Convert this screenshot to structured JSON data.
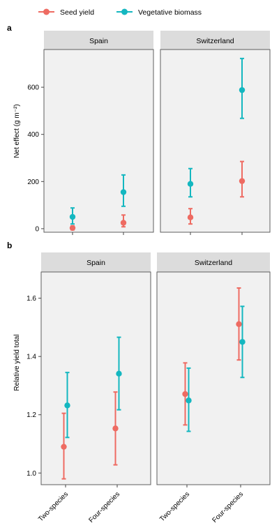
{
  "legend": {
    "items": [
      {
        "label": "Seed yield",
        "color": "#ee6b62"
      },
      {
        "label": "Vegetative biomass",
        "color": "#14b7c0"
      }
    ]
  },
  "x_tick_labels": [
    "Two-species",
    "Four-species"
  ],
  "chart_data": [
    {
      "type": "scatter",
      "panel_label": "a",
      "ylabel": "Net effect (g m⁻²)",
      "ylim": [
        -15,
        760
      ],
      "yticks": [
        0,
        200,
        400,
        600
      ],
      "x": [
        "Two-species",
        "Four-species"
      ],
      "facets": [
        "Spain",
        "Switzerland"
      ],
      "series": [
        {
          "name": "Seed yield",
          "color": "#ee6b62",
          "values": {
            "Spain": [
              {
                "y": 3,
                "lo": -5,
                "hi": 12
              },
              {
                "y": 25,
                "lo": 8,
                "hi": 58
              }
            ],
            "Switzerland": [
              {
                "y": 48,
                "lo": 20,
                "hi": 85
              },
              {
                "y": 202,
                "lo": 135,
                "hi": 285
              }
            ]
          }
        },
        {
          "name": "Vegetative biomass",
          "color": "#14b7c0",
          "values": {
            "Spain": [
              {
                "y": 50,
                "lo": 20,
                "hi": 88
              },
              {
                "y": 155,
                "lo": 95,
                "hi": 228
              }
            ],
            "Switzerland": [
              {
                "y": 190,
                "lo": 135,
                "hi": 255
              },
              {
                "y": 588,
                "lo": 468,
                "hi": 722
              }
            ]
          }
        }
      ]
    },
    {
      "type": "scatter",
      "panel_label": "b",
      "ylabel": "Relative yield total",
      "ylim": [
        0.96,
        1.69
      ],
      "yticks": [
        "1.0",
        "1.2",
        "1.4",
        "1.6"
      ],
      "x": [
        "Two-species",
        "Four-species"
      ],
      "facets": [
        "Spain",
        "Switzerland"
      ],
      "series": [
        {
          "name": "Seed yield",
          "color": "#ee6b62",
          "values": {
            "Spain": [
              {
                "y": 1.09,
                "lo": 0.98,
                "hi": 1.205
              },
              {
                "y": 1.153,
                "lo": 1.028,
                "hi": 1.278
              }
            ],
            "Switzerland": [
              {
                "y": 1.271,
                "lo": 1.165,
                "hi": 1.378
              },
              {
                "y": 1.511,
                "lo": 1.388,
                "hi": 1.635
              }
            ]
          }
        },
        {
          "name": "Vegetative biomass",
          "color": "#14b7c0",
          "values": {
            "Spain": [
              {
                "y": 1.232,
                "lo": 1.122,
                "hi": 1.345
              },
              {
                "y": 1.341,
                "lo": 1.217,
                "hi": 1.466
              }
            ],
            "Switzerland": [
              {
                "y": 1.249,
                "lo": 1.143,
                "hi": 1.36
              },
              {
                "y": 1.45,
                "lo": 1.328,
                "hi": 1.572
              }
            ]
          }
        }
      ]
    }
  ]
}
